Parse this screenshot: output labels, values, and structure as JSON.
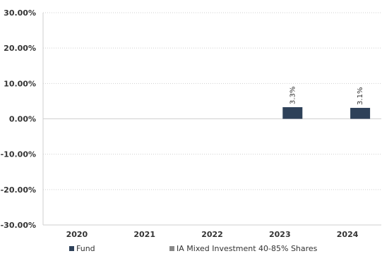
{
  "chart_data": {
    "type": "bar",
    "categories": [
      "2020",
      "2021",
      "2022",
      "2023",
      "2024"
    ],
    "series": [
      {
        "name": "Fund",
        "color": "#2e4159",
        "values": [
          null,
          null,
          null,
          3.3,
          3.1
        ],
        "labels": [
          "",
          "",
          "",
          "3.3%",
          "3.1%"
        ]
      },
      {
        "name": "IA Mixed Investment 40-85% Shares",
        "color": "#888888",
        "values": [
          null,
          null,
          null,
          null,
          null
        ]
      }
    ],
    "ylim": [
      -30,
      30
    ],
    "yticks": [
      30,
      20,
      10,
      0,
      -10,
      -20,
      -30
    ],
    "ytick_labels": [
      "30.00%",
      "20.00%",
      "10.00%",
      "0.00%",
      "-10.00%",
      "-20.00%",
      "-30.00%"
    ],
    "grid": "horizontal dotted",
    "legend": "bottom",
    "xlabel": "",
    "ylabel": ""
  }
}
